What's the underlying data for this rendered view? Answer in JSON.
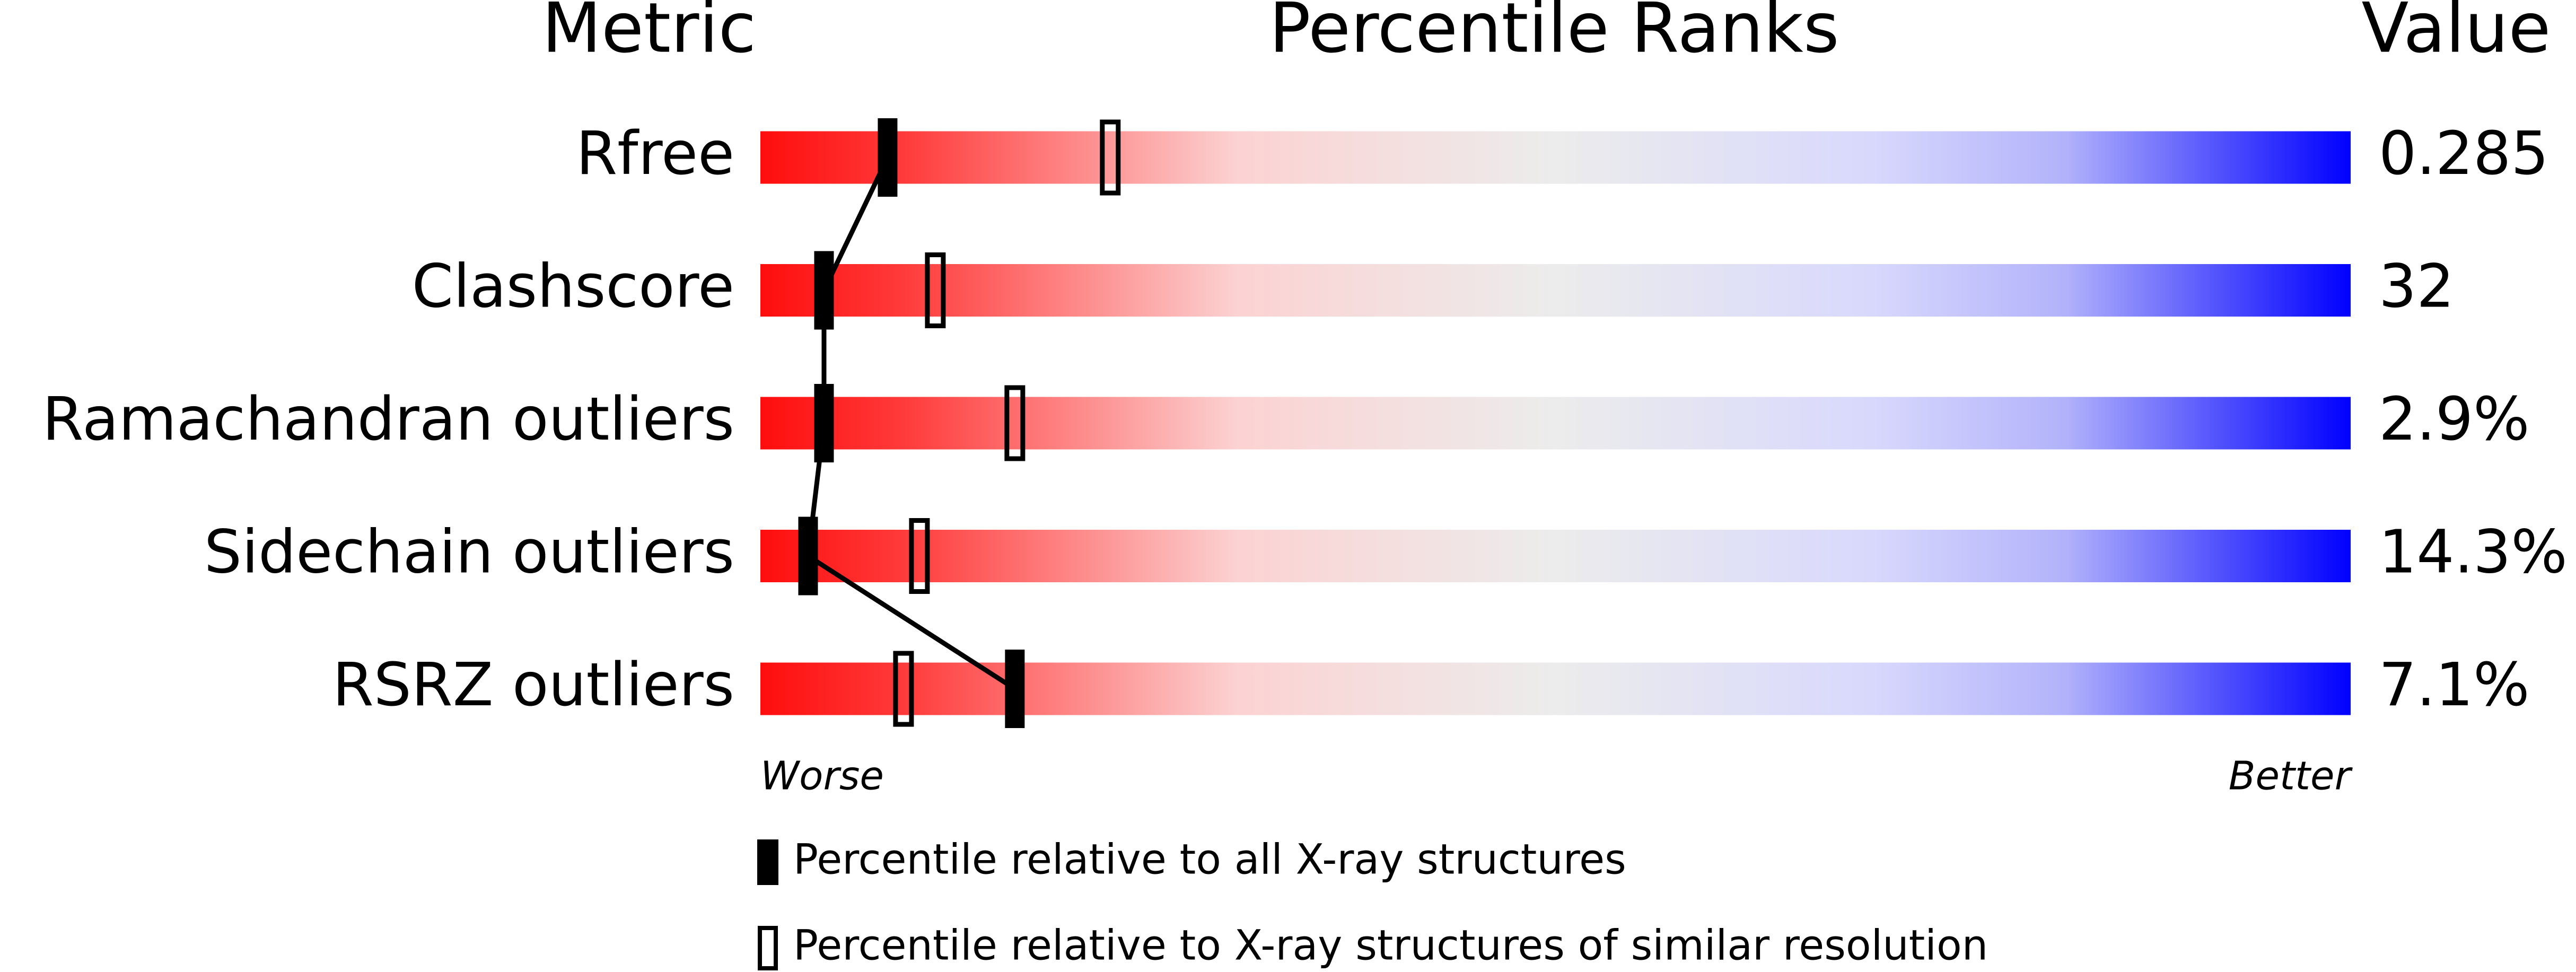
{
  "chart_data": {
    "type": "percentile",
    "headers": {
      "metric": "Metric",
      "ranks": "Percentile Ranks",
      "value": "Value"
    },
    "categories": [
      "Rfree",
      "Clashscore",
      "Ramachandran outliers",
      "Sidechain outliers",
      "RSRZ outliers"
    ],
    "metric_values": [
      "0.285",
      "32",
      "2.9%",
      "14.3%",
      "7.1%"
    ],
    "series": [
      {
        "name": "Percentile relative to all X-ray structures",
        "style": "filled",
        "color": "#000000",
        "values": [
          8,
          4,
          4,
          3,
          16
        ]
      },
      {
        "name": "Percentile relative to X-ray structures of similar resolution",
        "style": "hollow",
        "color": "#000000",
        "values": [
          22,
          11,
          16,
          10,
          9
        ]
      }
    ],
    "connect_series": 0,
    "xlim": [
      0,
      100
    ],
    "x_axis_labels": {
      "low": "Worse",
      "high": "Better"
    }
  }
}
